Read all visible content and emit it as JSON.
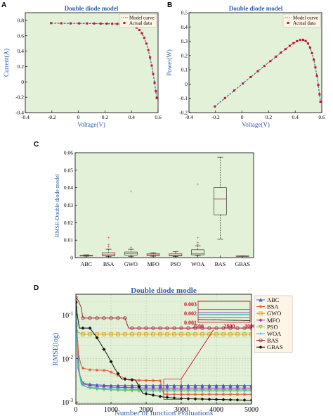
{
  "chart_data": [
    {
      "panel": "A",
      "type": "line",
      "title": "Double diode model",
      "xlabel": "Voltage(V)",
      "ylabel": "Current(A)",
      "xlim": [
        -0.4,
        0.6
      ],
      "ylim": [
        -0.4,
        0.9
      ],
      "xticks": [
        "-0.4",
        "-0.2",
        "0",
        "0.2",
        "0.4",
        "0.6"
      ],
      "yticks": [
        "-0.4",
        "-0.2",
        "0",
        "0.2",
        "0.4",
        "0.6",
        "0.8"
      ],
      "legend": {
        "position": "top-right",
        "entries": [
          "Model curve",
          "Actual data"
        ]
      },
      "grid": false,
      "series": [
        {
          "name": "Model curve",
          "x": [
            -0.2057,
            -0.1291,
            -0.0588,
            0.0057,
            0.0646,
            0.1185,
            0.1678,
            0.2132,
            0.2545,
            0.2924,
            0.3269,
            0.3585,
            0.3873,
            0.4137,
            0.4373,
            0.459,
            0.4784,
            0.496,
            0.5119,
            0.5265,
            0.5398,
            0.5521,
            0.5633,
            0.5736,
            0.5833,
            0.59
          ],
          "y": [
            0.764,
            0.762,
            0.7605,
            0.7605,
            0.76,
            0.759,
            0.757,
            0.757,
            0.7555,
            0.754,
            0.7505,
            0.7465,
            0.7385,
            0.728,
            0.7065,
            0.6755,
            0.632,
            0.573,
            0.499,
            0.413,
            0.3165,
            0.212,
            0.1035,
            -0.01,
            -0.123,
            -0.21
          ]
        },
        {
          "name": "Actual data",
          "x": [
            -0.2057,
            -0.1291,
            -0.0588,
            0.0057,
            0.0646,
            0.1185,
            0.1678,
            0.2132,
            0.2545,
            0.2924,
            0.3269,
            0.3585,
            0.3873,
            0.4137,
            0.4373,
            0.459,
            0.4784,
            0.496,
            0.5119,
            0.5265,
            0.5398,
            0.5521,
            0.5633,
            0.5736,
            0.5833,
            0.59
          ],
          "y": [
            0.764,
            0.762,
            0.7605,
            0.7605,
            0.76,
            0.759,
            0.757,
            0.757,
            0.7555,
            0.754,
            0.7505,
            0.7465,
            0.7385,
            0.728,
            0.7065,
            0.6755,
            0.632,
            0.573,
            0.499,
            0.413,
            0.3165,
            0.212,
            0.1035,
            -0.01,
            -0.123,
            -0.21
          ]
        }
      ]
    },
    {
      "panel": "B",
      "type": "line",
      "title": "Double diode model",
      "xlabel": "Voltage(V)",
      "ylabel": "Power(W)",
      "xlim": [
        -0.4,
        0.6
      ],
      "ylim": [
        -0.2,
        0.5
      ],
      "xticks": [
        "-0.4",
        "-0.2",
        "0",
        "0.2",
        "0.4",
        "0.6"
      ],
      "yticks": [
        "-0.2",
        "-0.1",
        "0",
        "0.1",
        "0.2",
        "0.3",
        "0.4",
        "0.5"
      ],
      "legend": {
        "position": "top-right",
        "entries": [
          "Model curve",
          "Actual data"
        ]
      },
      "grid": false,
      "series": [
        {
          "name": "Model curve",
          "x": [
            -0.2057,
            -0.1291,
            -0.0588,
            0.0057,
            0.0646,
            0.1185,
            0.1678,
            0.2132,
            0.2545,
            0.2924,
            0.3269,
            0.3585,
            0.3873,
            0.4137,
            0.4373,
            0.459,
            0.4784,
            0.496,
            0.5119,
            0.5265,
            0.5398,
            0.5521,
            0.5633,
            0.5736,
            0.5833,
            0.59
          ],
          "y": [
            -0.157,
            -0.098,
            -0.045,
            0.004,
            0.049,
            0.09,
            0.127,
            0.161,
            0.192,
            0.22,
            0.245,
            0.268,
            0.286,
            0.301,
            0.309,
            0.31,
            0.302,
            0.284,
            0.255,
            0.217,
            0.171,
            0.117,
            0.058,
            -0.006,
            -0.072,
            -0.124
          ]
        },
        {
          "name": "Actual data",
          "x": [
            -0.2057,
            -0.1291,
            -0.0588,
            0.0057,
            0.0646,
            0.1185,
            0.1678,
            0.2132,
            0.2545,
            0.2924,
            0.3269,
            0.3585,
            0.3873,
            0.4137,
            0.4373,
            0.459,
            0.4784,
            0.496,
            0.5119,
            0.5265,
            0.5398,
            0.5521,
            0.5633,
            0.5736,
            0.5833,
            0.59
          ],
          "y": [
            -0.157,
            -0.098,
            -0.045,
            0.004,
            0.049,
            0.09,
            0.127,
            0.161,
            0.192,
            0.22,
            0.245,
            0.268,
            0.286,
            0.301,
            0.309,
            0.31,
            0.302,
            0.284,
            0.255,
            0.217,
            0.171,
            0.117,
            0.058,
            -0.006,
            -0.072,
            -0.124
          ]
        }
      ]
    },
    {
      "panel": "C",
      "type": "box",
      "title": "",
      "xlabel": "",
      "ylabel": "RMSE-Double diode model",
      "ylim": [
        0,
        0.06
      ],
      "yticks": [
        "0",
        "0.01",
        "0.02",
        "0.03",
        "0.04",
        "0.05",
        "0.06"
      ],
      "categories": [
        "ABC",
        "BSA",
        "GWO",
        "MFO",
        "PSO",
        "WOA",
        "BAS",
        "GBAS"
      ],
      "boxes": [
        {
          "min": 0.0008,
          "q1": 0.0009,
          "median": 0.0011,
          "q3": 0.0013,
          "max": 0.0016,
          "outliers": []
        },
        {
          "min": 0.0005,
          "q1": 0.001,
          "median": 0.0016,
          "q3": 0.0028,
          "max": 0.0048,
          "outliers": [
            0.0062,
            0.0075,
            0.0115
          ]
        },
        {
          "min": 0.0007,
          "q1": 0.0015,
          "median": 0.0022,
          "q3": 0.0032,
          "max": 0.0048,
          "outliers": [
            0.0058,
            0.038
          ]
        },
        {
          "min": 0.0008,
          "q1": 0.0012,
          "median": 0.0016,
          "q3": 0.0022,
          "max": 0.0028,
          "outliers": []
        },
        {
          "min": 0.0006,
          "q1": 0.001,
          "median": 0.0015,
          "q3": 0.0022,
          "max": 0.0034,
          "outliers": []
        },
        {
          "min": 0.001,
          "q1": 0.0016,
          "median": 0.0024,
          "q3": 0.0045,
          "max": 0.0068,
          "outliers": [
            0.0075,
            0.0088,
            0.0115,
            0.042
          ]
        },
        {
          "min": 0.0105,
          "q1": 0.0245,
          "median": 0.0335,
          "q3": 0.04,
          "max": 0.0575,
          "outliers": []
        },
        {
          "min": 0.0008,
          "q1": 0.0009,
          "median": 0.00095,
          "q3": 0.001,
          "max": 0.0011,
          "outliers": []
        }
      ]
    },
    {
      "panel": "D",
      "type": "line",
      "title": "Double diode modle",
      "xlabel": "Number of function evaluations",
      "ylabel": "RMSE(log)",
      "xlim": [
        0,
        5000
      ],
      "yscale": "log",
      "ylim": [
        0.0009,
        0.3
      ],
      "xticks": [
        "0",
        "1000",
        "2000",
        "3000",
        "4000",
        "5000"
      ],
      "ytick_values": [
        0.001,
        0.01,
        0.1
      ],
      "legend": {
        "position": "outside-right",
        "entries": [
          "ABC",
          "BSA",
          "GWO",
          "MFO",
          "PSO",
          "WOA",
          "BAS",
          "GBAS"
        ]
      },
      "grid": true,
      "inset": {
        "xlim": [
          2500,
          3000
        ],
        "ylim": [
          0.001,
          0.0033
        ],
        "xticks": [
          "2500",
          "2800",
          "3000"
        ],
        "yticks": [
          "0.001",
          "0.002",
          "0.003"
        ]
      },
      "series": [
        {
          "name": "ABC",
          "color": "#3a5fcd",
          "marker": "triangle",
          "x": [
            0,
            40,
            100,
            200,
            500,
            1000,
            2000,
            3000,
            4000,
            5000
          ],
          "y": [
            0.2,
            0.03,
            0.0045,
            0.0027,
            0.0025,
            0.0024,
            0.0024,
            0.0024,
            0.0024,
            0.0024
          ]
        },
        {
          "name": "BSA",
          "color": "#e4572e",
          "marker": "star",
          "x": [
            0,
            80,
            150,
            200,
            400,
            900,
            1500,
            2400,
            2500,
            5000
          ],
          "y": [
            0.1,
            0.012,
            0.007,
            0.006,
            0.0055,
            0.0053,
            0.0032,
            0.0031,
            0.0015,
            0.0015
          ]
        },
        {
          "name": "GWO",
          "color": "#d49b00",
          "marker": "square",
          "x": [
            0,
            60,
            150,
            200,
            400,
            1000,
            2000,
            3000,
            4000,
            5000
          ],
          "y": [
            0.06,
            0.04,
            0.037,
            0.036,
            0.036,
            0.036,
            0.036,
            0.036,
            0.036,
            0.036
          ]
        },
        {
          "name": "MFO",
          "color": "#9b2fbf",
          "marker": "diamond",
          "x": [
            0,
            60,
            150,
            300,
            600,
            1000,
            2000,
            3000,
            4000,
            5000
          ],
          "y": [
            0.15,
            0.006,
            0.0028,
            0.0025,
            0.0023,
            0.0022,
            0.0021,
            0.0021,
            0.0021,
            0.0021
          ]
        },
        {
          "name": "PSO",
          "color": "#6abf4b",
          "marker": "triangle-down",
          "x": [
            0,
            60,
            150,
            300,
            600,
            1000,
            2000,
            3000,
            4000,
            5000
          ],
          "y": [
            0.18,
            0.008,
            0.003,
            0.0022,
            0.002,
            0.0019,
            0.0018,
            0.0018,
            0.0018,
            0.0018
          ]
        },
        {
          "name": "WOA",
          "color": "#35b5d6",
          "marker": "plus",
          "x": [
            0,
            60,
            150,
            300,
            600,
            1000,
            2000,
            3000,
            4000,
            5000
          ],
          "y": [
            0.12,
            0.007,
            0.0026,
            0.0022,
            0.0021,
            0.002,
            0.0019,
            0.0019,
            0.0019,
            0.0019
          ]
        },
        {
          "name": "BAS",
          "color": "#a0263a",
          "marker": "circle",
          "x": [
            0,
            60,
            150,
            200,
            1400,
            1500,
            4600,
            5000
          ],
          "y": [
            0.25,
            0.22,
            0.15,
            0.085,
            0.085,
            0.05,
            0.05,
            0.05
          ]
        },
        {
          "name": "GBAS",
          "color": "#111111",
          "marker": "diamond",
          "x": [
            0,
            40,
            100,
            150,
            400,
            600,
            900,
            1100,
            1300,
            1700,
            1900,
            2500,
            3000,
            5000
          ],
          "y": [
            0.2,
            0.1,
            0.05,
            0.05,
            0.05,
            0.03,
            0.012,
            0.006,
            0.0034,
            0.0032,
            0.0016,
            0.0013,
            0.0012,
            0.0011
          ]
        }
      ]
    }
  ],
  "panel_labels": [
    "A",
    "B",
    "C",
    "D"
  ]
}
